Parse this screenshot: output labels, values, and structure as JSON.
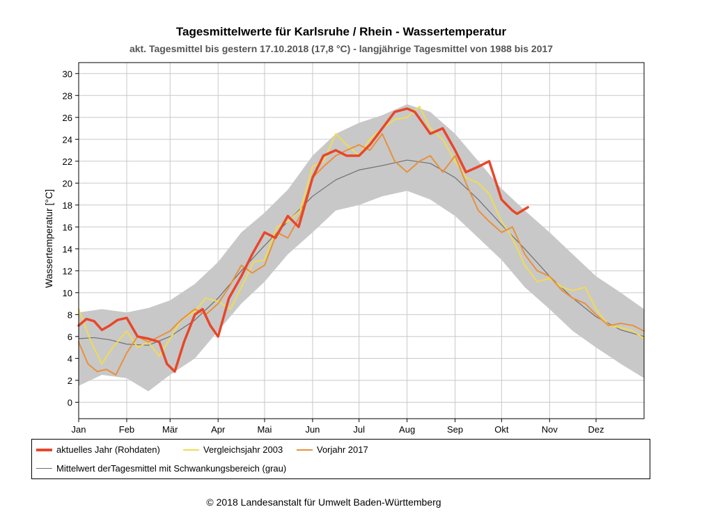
{
  "title": "Tagesmittelwerte für  Karlsruhe / Rhein - Wassertemperatur",
  "subtitle": "akt. Tagesmittel bis gestern 17.10.2018  (17,8 °C)  - langjährige Tagesmittel von 1988 bis 2017",
  "copyright": "© 2018 Landesanstalt für Umwelt Baden-Württemberg",
  "legend": {
    "current": "aktuelles Jahr (Rohdaten)",
    "y2003": "Vergleichsjahr 2003",
    "y2017": "Vorjahr 2017",
    "mean": "Mittelwert derTagesmittel mit Schwankungsbereich (grau)"
  },
  "colors": {
    "current": "#e8462a",
    "y2003": "#f0dc52",
    "y2017": "#e8913c",
    "mean": "#6e6e6e",
    "band": "#c8c8c8",
    "grid": "#c8c8c8"
  },
  "chart_data": {
    "type": "line",
    "title": "Tagesmittelwerte für  Karlsruhe / Rhein - Wassertemperatur",
    "ylabel": "Wassertemperatur [°C]",
    "xlabel": "",
    "ylim": [
      -1.5,
      31
    ],
    "yticks": [
      0,
      2,
      4,
      6,
      8,
      10,
      12,
      14,
      16,
      18,
      20,
      22,
      24,
      26,
      28,
      30
    ],
    "xlim": [
      0,
      365
    ],
    "month_ticks": [
      {
        "label": "Jan",
        "day": 0
      },
      {
        "label": "Feb",
        "day": 31
      },
      {
        "label": "Mär",
        "day": 59
      },
      {
        "label": "Apr",
        "day": 90
      },
      {
        "label": "Mai",
        "day": 120
      },
      {
        "label": "Jun",
        "day": 151
      },
      {
        "label": "Jul",
        "day": 181
      },
      {
        "label": "Aug",
        "day": 212
      },
      {
        "label": "Sep",
        "day": 243
      },
      {
        "label": "Okt",
        "day": 273
      },
      {
        "label": "Nov",
        "day": 304
      },
      {
        "label": "Dez",
        "day": 334
      }
    ],
    "grid": true,
    "legend_position": "bottom",
    "band": {
      "name": "Schwankungsbereich",
      "x": [
        0,
        15,
        31,
        45,
        59,
        75,
        90,
        105,
        120,
        135,
        151,
        166,
        181,
        196,
        212,
        227,
        243,
        258,
        273,
        288,
        304,
        319,
        334,
        350,
        365
      ],
      "upper": [
        8.2,
        8.5,
        8.2,
        8.6,
        9.3,
        10.8,
        12.8,
        15.5,
        17.3,
        19.4,
        22.5,
        24.5,
        25.5,
        26.2,
        27.2,
        26.5,
        24.5,
        22.0,
        19.5,
        17.5,
        15.5,
        13.5,
        11.5,
        10.0,
        8.5
      ],
      "lower": [
        1.5,
        2.5,
        2.2,
        1.0,
        2.5,
        4.0,
        6.5,
        9.0,
        11.0,
        13.5,
        15.5,
        17.5,
        18.0,
        18.8,
        19.3,
        18.5,
        17.0,
        15.0,
        13.0,
        10.5,
        8.5,
        6.5,
        5.0,
        3.5,
        2.2
      ]
    },
    "series": [
      {
        "name": "Mittelwert derTagesmittel mit Schwankungsbereich (grau)",
        "x": [
          0,
          10,
          20,
          31,
          45,
          59,
          75,
          90,
          105,
          120,
          135,
          151,
          166,
          181,
          196,
          212,
          227,
          243,
          258,
          273,
          288,
          304,
          319,
          334,
          350,
          365
        ],
        "y": [
          5.8,
          5.9,
          5.7,
          5.3,
          5.2,
          6.0,
          7.5,
          9.5,
          12.0,
          14.3,
          16.5,
          18.8,
          20.3,
          21.2,
          21.6,
          22.1,
          21.8,
          20.5,
          18.5,
          16.2,
          14.0,
          11.5,
          9.5,
          7.8,
          6.6,
          6.0
        ]
      },
      {
        "name": "Vergleichsjahr 2003",
        "x": [
          0,
          8,
          15,
          22,
          31,
          38,
          45,
          52,
          59,
          66,
          75,
          82,
          90,
          98,
          105,
          113,
          120,
          128,
          135,
          143,
          151,
          158,
          166,
          173,
          181,
          188,
          196,
          204,
          212,
          220,
          227,
          235,
          243,
          250,
          258,
          265,
          273,
          280,
          288,
          296,
          304,
          312,
          319,
          327,
          334,
          342,
          350,
          358,
          365
        ],
        "y": [
          8.5,
          5.5,
          3.5,
          5.0,
          6.5,
          5.0,
          5.5,
          4.2,
          5.8,
          7.5,
          8.3,
          9.5,
          9.2,
          8.5,
          10.5,
          12.8,
          13.0,
          16.0,
          16.5,
          17.5,
          21.5,
          22.0,
          24.5,
          23.5,
          22.5,
          24.0,
          25.0,
          25.8,
          26.0,
          27.0,
          25.0,
          24.0,
          22.0,
          20.5,
          20.0,
          19.0,
          16.5,
          15.0,
          12.5,
          11.0,
          11.3,
          10.5,
          10.2,
          10.5,
          8.5,
          7.0,
          6.8,
          6.5,
          5.8
        ]
      },
      {
        "name": "Vorjahr 2017",
        "x": [
          0,
          6,
          12,
          18,
          24,
          31,
          38,
          45,
          52,
          59,
          66,
          75,
          82,
          90,
          97,
          105,
          112,
          120,
          128,
          135,
          143,
          151,
          158,
          166,
          173,
          181,
          188,
          196,
          204,
          212,
          220,
          227,
          235,
          243,
          250,
          258,
          265,
          273,
          280,
          288,
          296,
          304,
          312,
          319,
          327,
          334,
          342,
          350,
          358,
          365
        ],
        "y": [
          5.5,
          3.5,
          2.8,
          3.0,
          2.5,
          4.5,
          6.0,
          5.5,
          6.0,
          6.5,
          7.5,
          8.5,
          8.0,
          9.0,
          10.5,
          12.5,
          11.8,
          12.5,
          15.5,
          15.0,
          17.0,
          20.5,
          21.5,
          22.5,
          23.0,
          23.5,
          23.0,
          24.5,
          22.0,
          21.0,
          22.0,
          22.5,
          21.0,
          22.5,
          20.0,
          17.5,
          16.5,
          15.5,
          16.0,
          13.5,
          12.0,
          11.5,
          10.2,
          9.5,
          9.0,
          8.0,
          7.0,
          7.2,
          7.0,
          6.5
        ]
      },
      {
        "name": "aktuelles Jahr (Rohdaten)",
        "x": [
          0,
          5,
          10,
          15,
          20,
          25,
          31,
          38,
          45,
          52,
          57,
          62,
          68,
          75,
          80,
          85,
          90,
          97,
          105,
          112,
          120,
          127,
          135,
          142,
          151,
          158,
          166,
          173,
          181,
          188,
          196,
          204,
          212,
          217,
          222,
          227,
          235,
          243,
          250,
          258,
          265,
          273,
          280,
          283,
          290
        ],
        "y": [
          7.0,
          7.6,
          7.4,
          6.6,
          7.0,
          7.5,
          7.7,
          6.0,
          5.8,
          5.5,
          3.5,
          2.8,
          5.5,
          8.0,
          8.5,
          7.0,
          6.0,
          9.5,
          11.5,
          13.5,
          15.5,
          15.0,
          17.0,
          16.0,
          20.5,
          22.5,
          23.0,
          22.5,
          22.5,
          23.5,
          25.0,
          26.5,
          26.8,
          26.5,
          25.5,
          24.5,
          25.0,
          23.0,
          21.0,
          21.5,
          22.0,
          18.5,
          17.5,
          17.2,
          17.8
        ]
      }
    ]
  }
}
